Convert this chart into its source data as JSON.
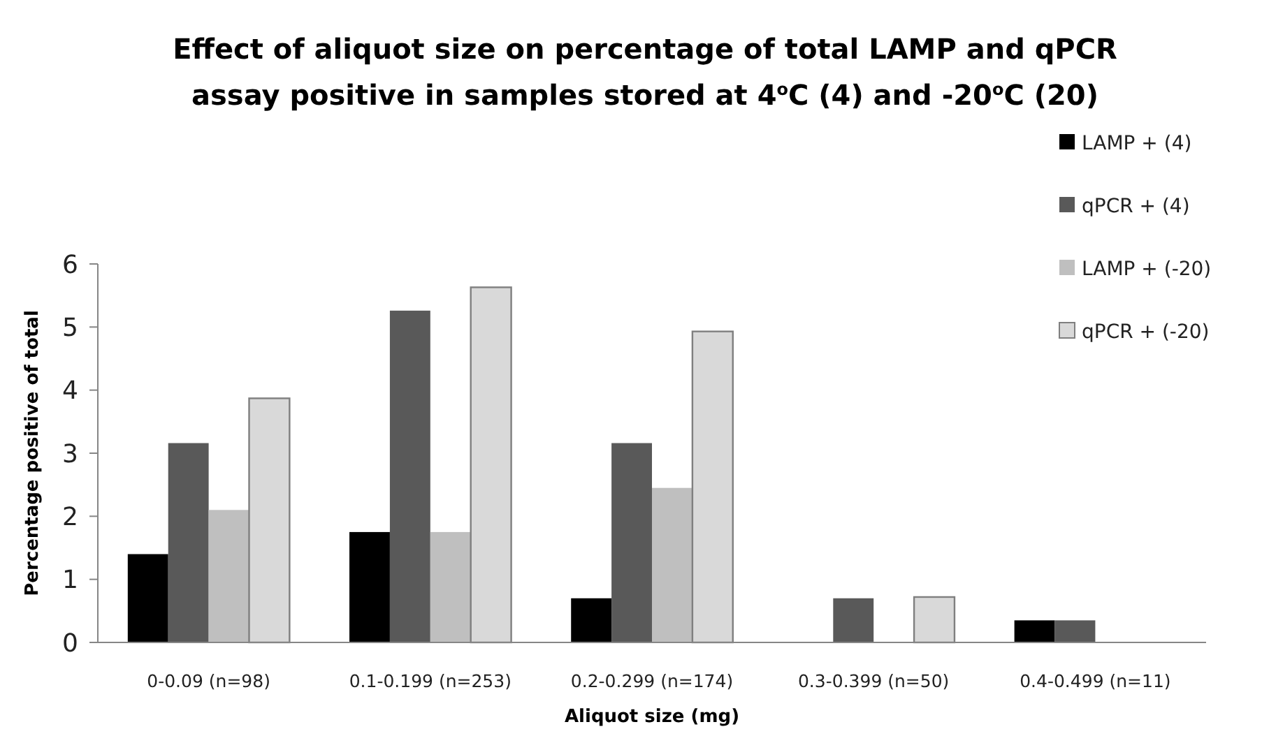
{
  "chart_data": {
    "type": "bar",
    "title": "Effect of aliquot size on percentage of total LAMP and qPCR assay positive in samples stored at 4$^{o}$C (4) and -20$^{o}$C (20)",
    "xlabel": "Aliquot size (mg)",
    "ylabel": "Percentage positive of total",
    "categories": [
      "0-0.09 (n=98)",
      "0.1-0.199 (n=253)",
      "0.2-0.299 (n=174)",
      "0.3-0.399 (n=50)",
      "0.4-0.499 (n=11)"
    ],
    "series": [
      {
        "name": "LAMP + (4)",
        "color": "#000000",
        "values": [
          1.4,
          1.75,
          0.7,
          0,
          0.35
        ]
      },
      {
        "name": "qPCR + (4)",
        "color": "#595959",
        "values": [
          3.16,
          5.26,
          3.16,
          0.7,
          0.35
        ]
      },
      {
        "name": "LAMP + (-20)",
        "color": "#bfbfbf",
        "values": [
          2.1,
          1.75,
          2.45,
          0,
          0
        ]
      },
      {
        "name": "qPCR + (-20)",
        "color": "#d9d9d9",
        "values": [
          3.87,
          5.63,
          4.93,
          0.72,
          0
        ]
      }
    ],
    "ylim": [
      0,
      6
    ],
    "yticks": [
      0,
      1,
      2,
      3,
      4,
      5,
      6
    ],
    "legend": "top right"
  }
}
